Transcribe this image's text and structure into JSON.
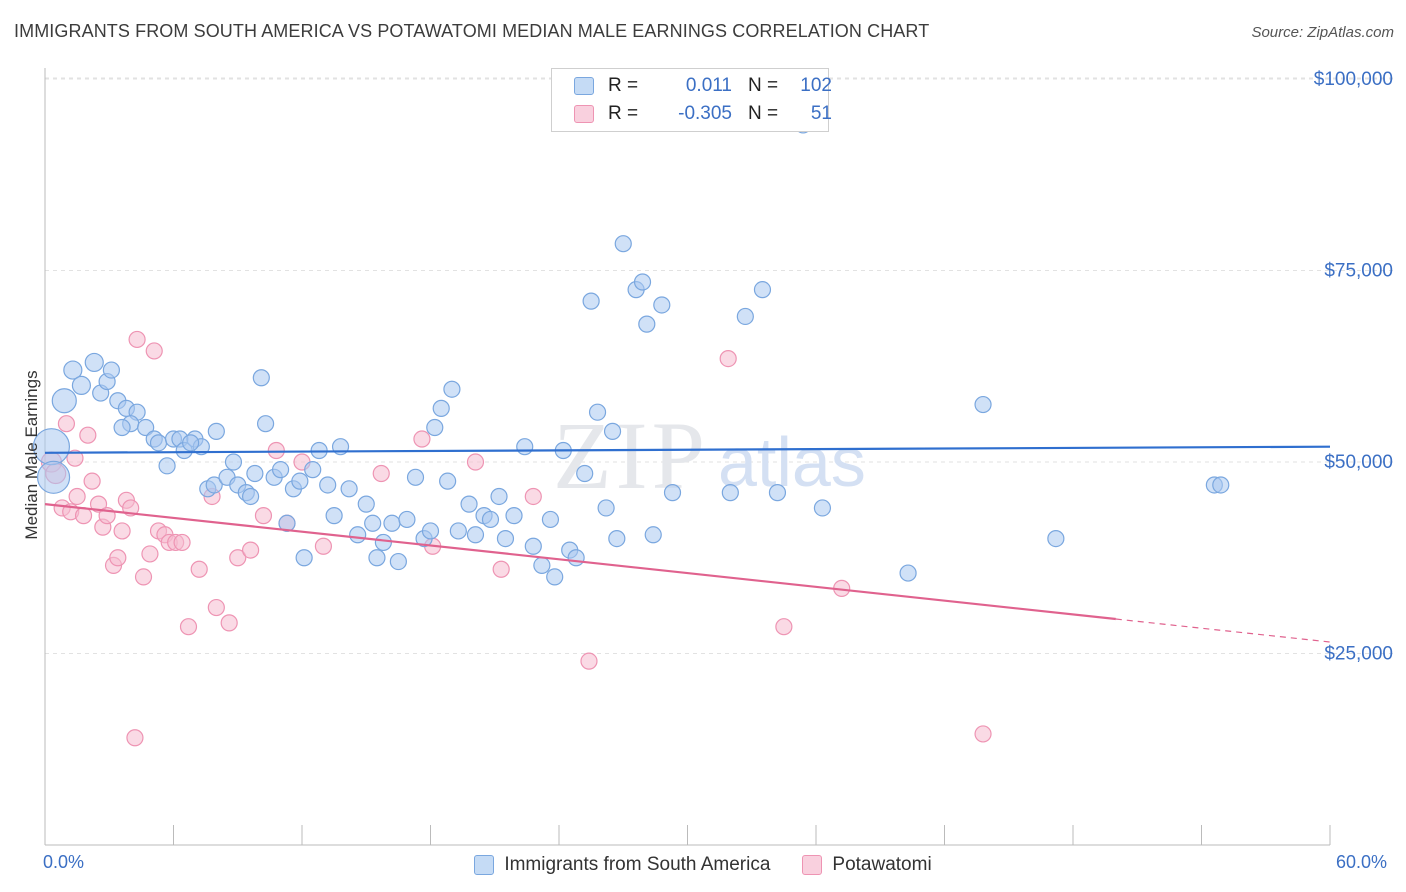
{
  "header": {
    "title": "IMMIGRANTS FROM SOUTH AMERICA VS POTAWATOMI MEDIAN MALE EARNINGS CORRELATION CHART",
    "source": "Source: ZipAtlas.com"
  },
  "watermark": {
    "zip": "ZIP",
    "atlas": "atlas"
  },
  "legend": {
    "rows": [
      {
        "r_label": "R =",
        "r_value": "0.011",
        "n_label": "N =",
        "n_value": "102"
      },
      {
        "r_label": "R =",
        "r_value": "-0.305",
        "n_label": "N =",
        "n_value": "51"
      }
    ]
  },
  "bottom_legend": {
    "series1": "Immigrants from South America",
    "series2": "Potawatomi"
  },
  "axes": {
    "ylabel": "Median Male Earnings",
    "x_min_label": "0.0%",
    "x_max_label": "60.0%",
    "y_ticks": [
      "$100,000",
      "$75,000",
      "$50,000",
      "$25,000"
    ]
  },
  "colors": {
    "blue_fill": "#a9c8f0",
    "blue_stroke": "#7aa7df",
    "blue_line": "#2f6fcf",
    "pink_fill": "#f6bcd0",
    "pink_stroke": "#ee94b3",
    "pink_line": "#e0628e",
    "tick_label": "#3b6fc4"
  },
  "chart_data": {
    "type": "scatter",
    "title": "IMMIGRANTS FROM SOUTH AMERICA VS POTAWATOMI MEDIAN MALE EARNINGS CORRELATION CHART",
    "xlabel": "",
    "ylabel": "Median Male Earnings",
    "xlim": [
      0,
      60
    ],
    "ylim": [
      0,
      105000
    ],
    "y_ticks": [
      25000,
      50000,
      75000,
      100000
    ],
    "grid": true,
    "legend_position": "top-center",
    "series": [
      {
        "name": "Immigrants from South America",
        "r": 0.011,
        "n": 102,
        "trend": {
          "x": [
            0,
            60
          ],
          "y": [
            51200,
            52000
          ]
        },
        "points": [
          [
            0.3,
            52000,
            18
          ],
          [
            0.4,
            48000,
            16
          ],
          [
            0.9,
            58000,
            12
          ],
          [
            1.3,
            62000,
            9
          ],
          [
            1.7,
            60000,
            9
          ],
          [
            2.3,
            63000,
            9
          ],
          [
            2.6,
            59000,
            8
          ],
          [
            2.9,
            60500,
            8
          ],
          [
            3.1,
            62000,
            8
          ],
          [
            3.4,
            58000,
            8
          ],
          [
            3.8,
            57000,
            8
          ],
          [
            4.3,
            56500,
            8
          ],
          [
            4.0,
            55000,
            8
          ],
          [
            4.7,
            54500,
            8
          ],
          [
            5.1,
            53000,
            8
          ],
          [
            5.3,
            52500,
            8
          ],
          [
            5.7,
            49500,
            8
          ],
          [
            6.0,
            53000,
            8
          ],
          [
            6.3,
            53000,
            8
          ],
          [
            6.5,
            51500,
            8
          ],
          [
            7.0,
            53000,
            8
          ],
          [
            7.3,
            52000,
            8
          ],
          [
            7.6,
            46500,
            8
          ],
          [
            7.9,
            47000,
            8
          ],
          [
            8.0,
            54000,
            8
          ],
          [
            8.5,
            48000,
            8
          ],
          [
            8.8,
            50000,
            8
          ],
          [
            9.0,
            47000,
            8
          ],
          [
            9.4,
            46000,
            8
          ],
          [
            9.8,
            48500,
            8
          ],
          [
            10.1,
            61000,
            8
          ],
          [
            10.3,
            55000,
            8
          ],
          [
            10.7,
            48000,
            8
          ],
          [
            11.0,
            49000,
            8
          ],
          [
            11.3,
            42000,
            8
          ],
          [
            11.6,
            46500,
            8
          ],
          [
            11.9,
            47500,
            8
          ],
          [
            12.1,
            37500,
            8
          ],
          [
            12.5,
            49000,
            8
          ],
          [
            12.8,
            51500,
            8
          ],
          [
            13.2,
            47000,
            8
          ],
          [
            13.5,
            43000,
            8
          ],
          [
            13.8,
            52000,
            8
          ],
          [
            14.2,
            46500,
            8
          ],
          [
            14.6,
            40500,
            8
          ],
          [
            15.0,
            44500,
            8
          ],
          [
            15.3,
            42000,
            8
          ],
          [
            15.5,
            37500,
            8
          ],
          [
            15.8,
            39500,
            8
          ],
          [
            16.2,
            42000,
            8
          ],
          [
            16.5,
            37000,
            8
          ],
          [
            16.9,
            42500,
            8
          ],
          [
            17.3,
            48000,
            8
          ],
          [
            17.7,
            40000,
            8
          ],
          [
            18.0,
            41000,
            8
          ],
          [
            18.2,
            54500,
            8
          ],
          [
            18.5,
            57000,
            8
          ],
          [
            18.8,
            47500,
            8
          ],
          [
            19.0,
            59500,
            8
          ],
          [
            19.3,
            41000,
            8
          ],
          [
            19.8,
            44500,
            8
          ],
          [
            20.1,
            40500,
            8
          ],
          [
            20.5,
            43000,
            8
          ],
          [
            20.8,
            42500,
            8
          ],
          [
            21.2,
            45500,
            8
          ],
          [
            21.5,
            40000,
            8
          ],
          [
            21.9,
            43000,
            8
          ],
          [
            22.4,
            52000,
            8
          ],
          [
            22.8,
            39000,
            8
          ],
          [
            23.2,
            36500,
            8
          ],
          [
            23.6,
            42500,
            8
          ],
          [
            23.8,
            35000,
            8
          ],
          [
            24.2,
            51500,
            8
          ],
          [
            24.5,
            38500,
            8
          ],
          [
            24.8,
            37500,
            8
          ],
          [
            25.2,
            48500,
            8
          ],
          [
            25.5,
            71000,
            8
          ],
          [
            25.8,
            56500,
            8
          ],
          [
            26.2,
            44000,
            8
          ],
          [
            26.5,
            54000,
            8
          ],
          [
            26.7,
            40000,
            8
          ],
          [
            27.0,
            78500,
            8
          ],
          [
            27.6,
            72500,
            8
          ],
          [
            27.9,
            73500,
            8
          ],
          [
            28.1,
            68000,
            8
          ],
          [
            28.4,
            40500,
            8
          ],
          [
            28.8,
            70500,
            8
          ],
          [
            29.3,
            46000,
            8
          ],
          [
            32.0,
            46000,
            8
          ],
          [
            32.7,
            69000,
            8
          ],
          [
            33.5,
            72500,
            8
          ],
          [
            34.2,
            46000,
            8
          ],
          [
            35.4,
            94000,
            8
          ],
          [
            36.3,
            44000,
            8
          ],
          [
            40.3,
            35500,
            8
          ],
          [
            43.8,
            57500,
            8
          ],
          [
            47.2,
            40000,
            8
          ],
          [
            54.6,
            47000,
            8
          ],
          [
            54.9,
            47000,
            8
          ],
          [
            9.6,
            45500,
            8
          ],
          [
            6.8,
            52500,
            8
          ],
          [
            3.6,
            54500,
            8
          ]
        ]
      },
      {
        "name": "Potawatomi",
        "r": -0.305,
        "n": 51,
        "trend": {
          "x": [
            0,
            50
          ],
          "y": [
            44500,
            29500
          ]
        },
        "trend_dashed": {
          "x": [
            50,
            60
          ],
          "y": [
            29500,
            26500
          ]
        },
        "points": [
          [
            0.3,
            50000,
            10
          ],
          [
            0.5,
            48500,
            10
          ],
          [
            0.8,
            44000,
            8
          ],
          [
            1.0,
            55000,
            8
          ],
          [
            1.2,
            43500,
            8
          ],
          [
            1.5,
            45500,
            8
          ],
          [
            1.8,
            43000,
            8
          ],
          [
            2.0,
            53500,
            8
          ],
          [
            2.2,
            47500,
            8
          ],
          [
            2.5,
            44500,
            8
          ],
          [
            2.7,
            41500,
            8
          ],
          [
            2.9,
            43000,
            8
          ],
          [
            3.2,
            36500,
            8
          ],
          [
            3.4,
            37500,
            8
          ],
          [
            3.6,
            41000,
            8
          ],
          [
            3.8,
            45000,
            8
          ],
          [
            4.0,
            44000,
            8
          ],
          [
            4.2,
            14000,
            8
          ],
          [
            4.3,
            66000,
            8
          ],
          [
            4.6,
            35000,
            8
          ],
          [
            4.9,
            38000,
            8
          ],
          [
            5.1,
            64500,
            8
          ],
          [
            5.3,
            41000,
            8
          ],
          [
            5.6,
            40500,
            8
          ],
          [
            5.8,
            39500,
            8
          ],
          [
            6.1,
            39500,
            8
          ],
          [
            6.4,
            39500,
            8
          ],
          [
            6.7,
            28500,
            8
          ],
          [
            7.2,
            36000,
            8
          ],
          [
            7.8,
            45500,
            8
          ],
          [
            8.0,
            31000,
            8
          ],
          [
            8.6,
            29000,
            8
          ],
          [
            9.0,
            37500,
            8
          ],
          [
            9.6,
            38500,
            8
          ],
          [
            10.2,
            43000,
            8
          ],
          [
            10.8,
            51500,
            8
          ],
          [
            11.3,
            42000,
            8
          ],
          [
            12.0,
            50000,
            8
          ],
          [
            13.0,
            39000,
            8
          ],
          [
            15.7,
            48500,
            8
          ],
          [
            17.6,
            53000,
            8
          ],
          [
            18.1,
            39000,
            8
          ],
          [
            20.1,
            50000,
            8
          ],
          [
            21.3,
            36000,
            8
          ],
          [
            22.8,
            45500,
            8
          ],
          [
            25.4,
            24000,
            8
          ],
          [
            31.9,
            63500,
            8
          ],
          [
            34.5,
            28500,
            8
          ],
          [
            37.2,
            33500,
            8
          ],
          [
            43.8,
            14500,
            8
          ],
          [
            1.4,
            50500,
            8
          ]
        ]
      }
    ]
  }
}
